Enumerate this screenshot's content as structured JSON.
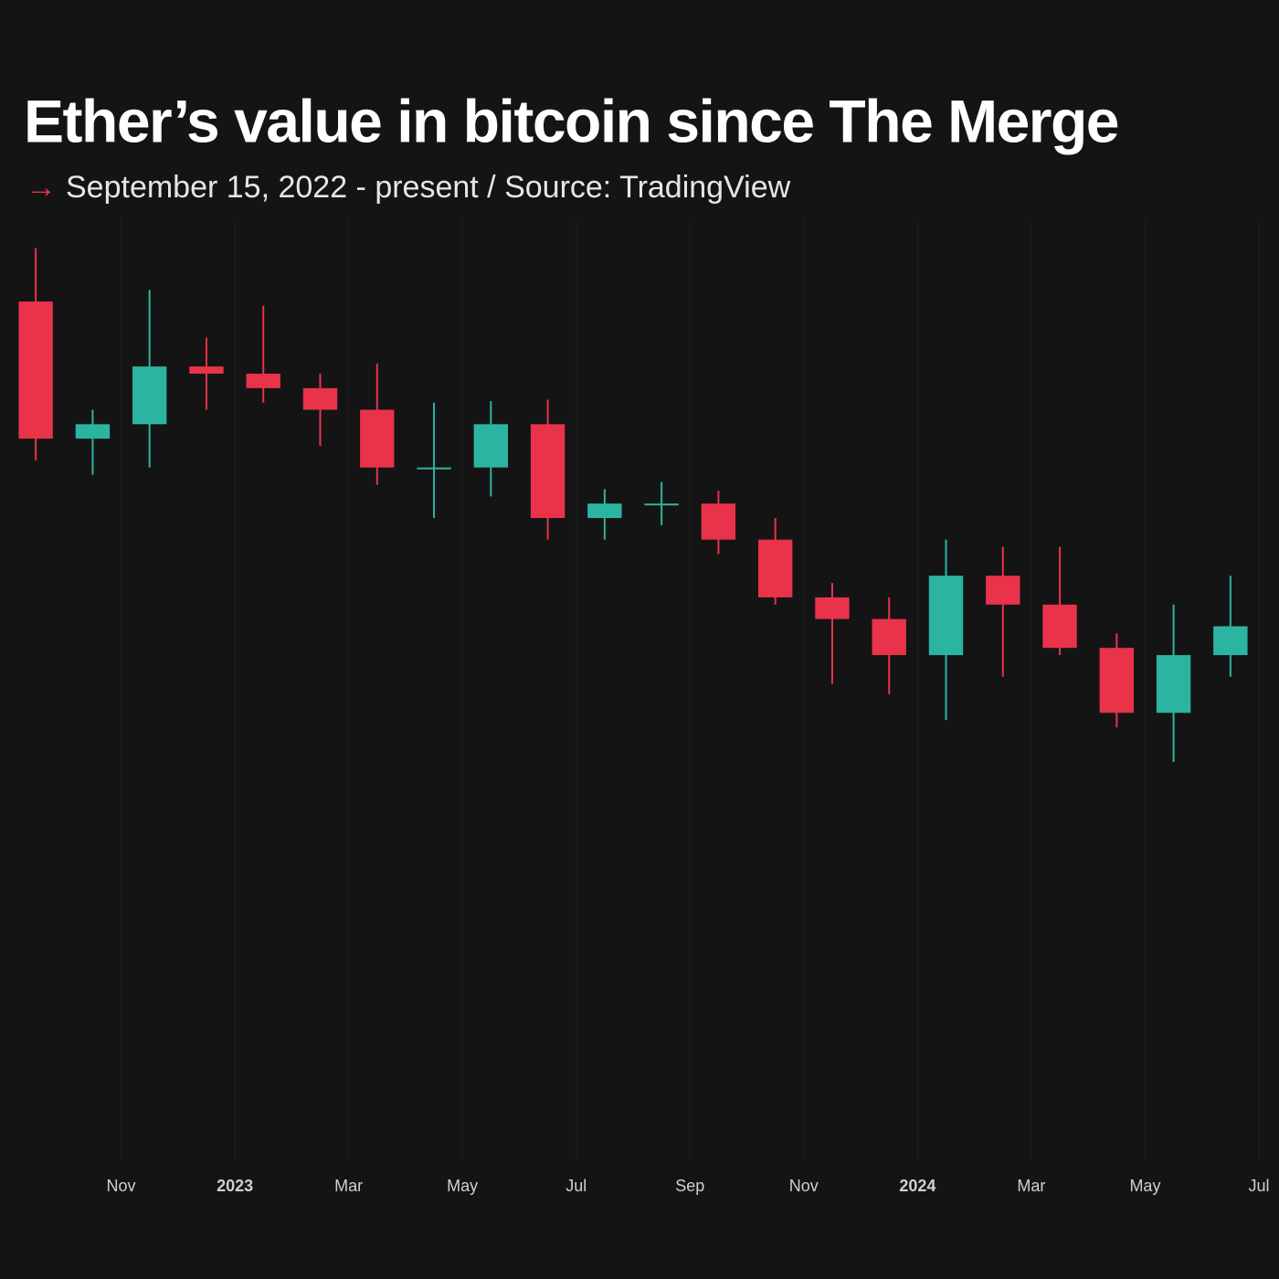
{
  "chart_data": {
    "type": "candlestick",
    "title": "Ether’s value in bitcoin since The Merge",
    "subtitle_marker": "→",
    "subtitle": "September 15, 2022 - present / Source: TradingView",
    "x": [
      "2022-09",
      "2022-10",
      "2022-11",
      "2022-12",
      "2023-01",
      "2023-02",
      "2023-03",
      "2023-04",
      "2023-05",
      "2023-06",
      "2023-07",
      "2023-08",
      "2023-09",
      "2023-10",
      "2023-11",
      "2023-12",
      "2024-01",
      "2024-02",
      "2024-03",
      "2024-04",
      "2024-05",
      "2024-06"
    ],
    "open": [
      0.0765,
      0.067,
      0.068,
      0.072,
      0.0715,
      0.0705,
      0.069,
      0.065,
      0.065,
      0.068,
      0.0615,
      0.0625,
      0.0625,
      0.06,
      0.056,
      0.0545,
      0.052,
      0.0575,
      0.0555,
      0.0525,
      0.048,
      0.052
    ],
    "high": [
      0.0802,
      0.069,
      0.0773,
      0.074,
      0.0762,
      0.0715,
      0.0722,
      0.0695,
      0.0696,
      0.0697,
      0.0635,
      0.064,
      0.0634,
      0.0615,
      0.057,
      0.056,
      0.06,
      0.0595,
      0.0595,
      0.0535,
      0.0555,
      0.0575
    ],
    "low": [
      0.0655,
      0.0645,
      0.065,
      0.069,
      0.0695,
      0.0665,
      0.0638,
      0.0615,
      0.063,
      0.06,
      0.06,
      0.061,
      0.059,
      0.0555,
      0.05,
      0.0493,
      0.0475,
      0.0505,
      0.052,
      0.047,
      0.0446,
      0.0505
    ],
    "close": [
      0.067,
      0.068,
      0.072,
      0.0715,
      0.0705,
      0.069,
      0.065,
      0.065,
      0.068,
      0.0615,
      0.0625,
      0.0625,
      0.06,
      0.056,
      0.0545,
      0.052,
      0.0575,
      0.0555,
      0.0525,
      0.048,
      0.052,
      0.054
    ],
    "up_color": "#2bb5a0",
    "down_color": "#e8334a",
    "xlim": [
      "2022-09",
      "2024-07"
    ],
    "ylim": [
      0.017,
      0.0822
    ],
    "xticks": [
      {
        "value": "2022-11",
        "label": "Nov"
      },
      {
        "value": "2023-01",
        "label": "2023"
      },
      {
        "value": "2023-03",
        "label": "Mar"
      },
      {
        "value": "2023-05",
        "label": "May"
      },
      {
        "value": "2023-07",
        "label": "Jul"
      },
      {
        "value": "2023-09",
        "label": "Sep"
      },
      {
        "value": "2023-11",
        "label": "Nov"
      },
      {
        "value": "2024-01",
        "label": "2024"
      },
      {
        "value": "2024-03",
        "label": "Mar"
      },
      {
        "value": "2024-05",
        "label": "May"
      },
      {
        "value": "2024-07",
        "label": "Jul"
      }
    ],
    "grid": true
  }
}
